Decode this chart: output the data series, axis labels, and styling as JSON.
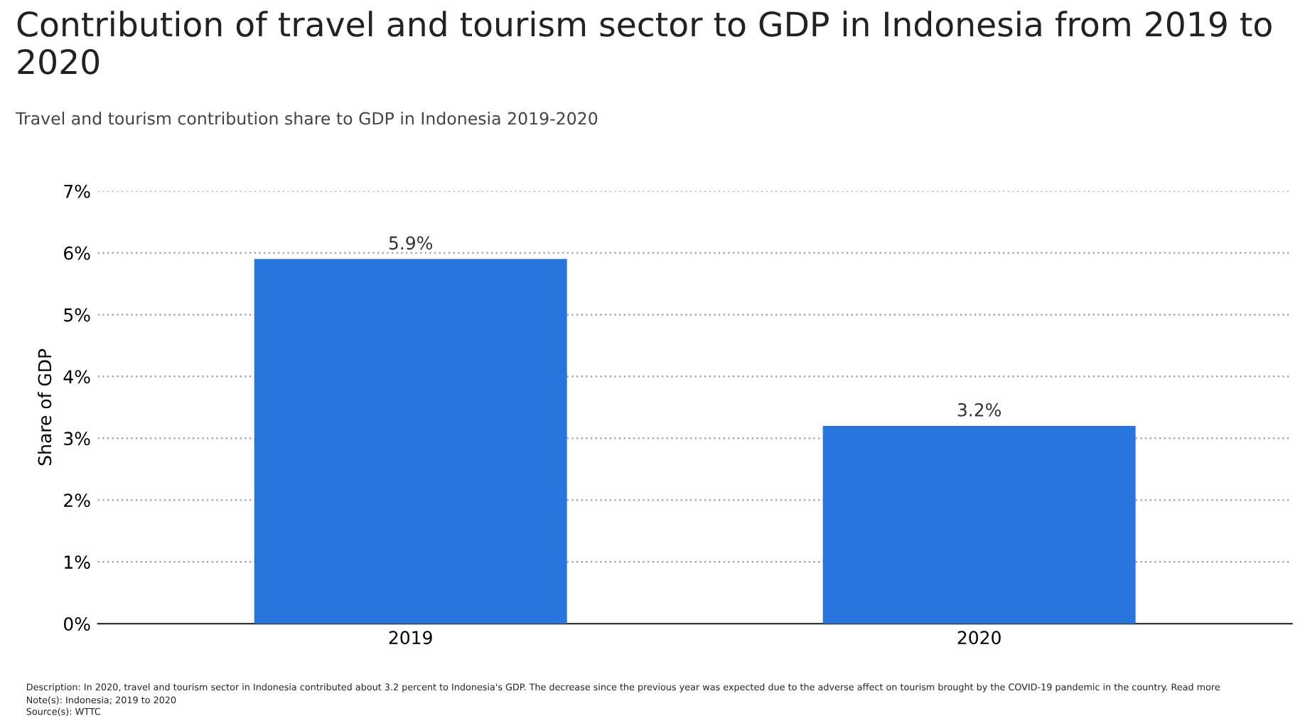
{
  "chart_data": {
    "type": "bar",
    "title": "Contribution of travel and tourism sector to GDP in Indonesia from 2019 to 2020",
    "subtitle": "Travel and tourism contribution share to GDP in Indonesia 2019-2020",
    "ylabel": "Share of GDP",
    "categories": [
      "2019",
      "2020"
    ],
    "values": [
      5.9,
      3.2
    ],
    "value_labels": [
      "5.9%",
      "3.2%"
    ],
    "color": "#2876dd",
    "ylim": [
      0,
      7
    ],
    "yticks": [
      {
        "value": 0,
        "label": "0%"
      },
      {
        "value": 1,
        "label": "1%"
      },
      {
        "value": 2,
        "label": "2%"
      },
      {
        "value": 3,
        "label": "3%"
      },
      {
        "value": 4,
        "label": "4%"
      },
      {
        "value": 5,
        "label": "5%"
      },
      {
        "value": 6,
        "label": "6%"
      },
      {
        "value": 7,
        "label": "7%"
      }
    ],
    "grid": "y",
    "annotations": [
      "Description: In 2020, travel and tourism sector in Indonesia contributed about 3.2 percent to Indonesia's GDP. The decrease since the previous year was expected due to the adverse affect on tourism brought by the COVID-19 pandemic in the country. Read more",
      "Note(s): Indonesia; 2019 to 2020",
      "Source(s): WTTC"
    ]
  }
}
